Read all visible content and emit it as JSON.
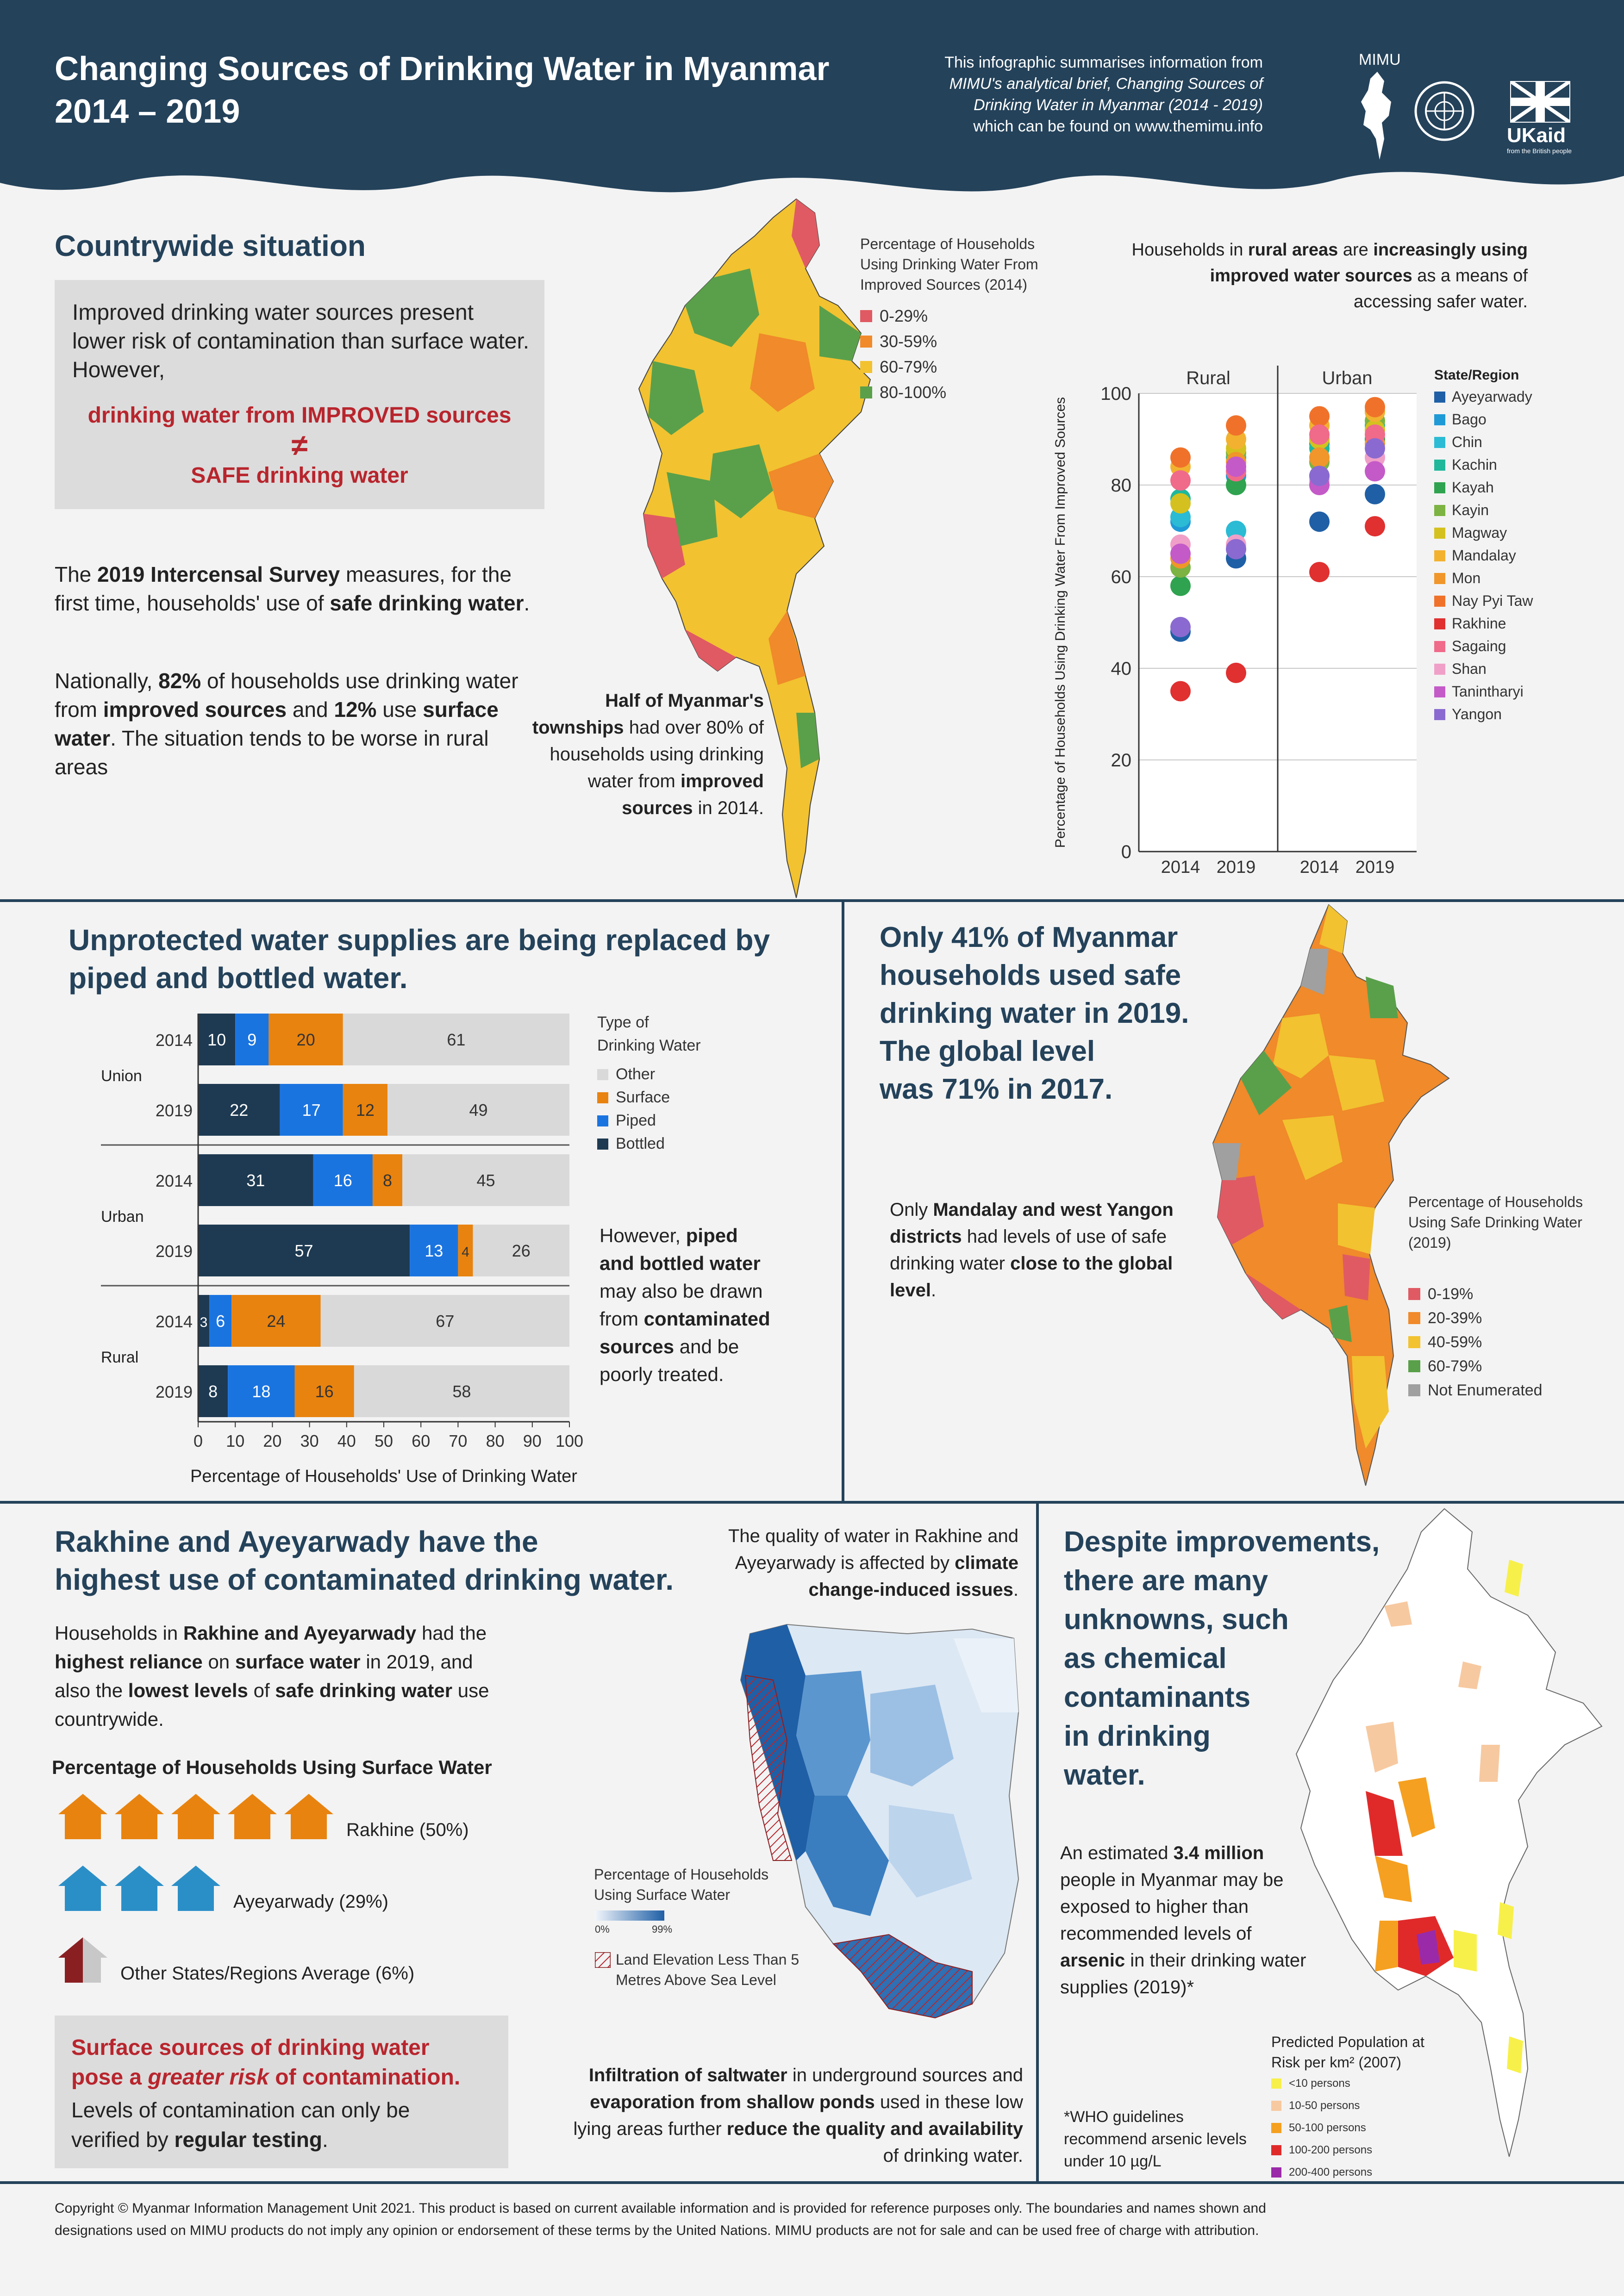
{
  "header": {
    "title_line1": "Changing Sources of Drinking Water in Myanmar",
    "title_line2": "2014 – 2019",
    "intro_line1": "This infographic summarises information from",
    "intro_line2": "MIMU's analytical brief, Changing Sources of",
    "intro_line3": "Drinking Water in Myanmar (2014 - 2019)",
    "intro_line4": "which can be found on www.themimu.info",
    "mimu_logo_text": "MIMU",
    "ukaid_text": "UKaid",
    "ukaid_sub": "from the British people"
  },
  "countrywide": {
    "heading": "Countrywide situation",
    "box_text": "Improved drinking water sources present lower risk of contamination than surface water. However,",
    "box_line1": "drinking water from IMPROVED sources",
    "neq": "≠",
    "box_line2": "SAFE drinking water",
    "para1_a": "The ",
    "para1_b": "2019 Intercensal Survey",
    "para1_c": " measures, for the first time, households' use of ",
    "para1_d": "safe drinking water",
    "para1_e": ".",
    "para2_a": "Nationally, ",
    "para2_b": "82%",
    "para2_c": " of households use drinking water from ",
    "para2_d": "improved sources",
    "para2_e": " and ",
    "para2_f": "12%",
    "para2_g": " use ",
    "para2_h": "surface water",
    "para2_i": ". The situation tends to be worse in rural areas",
    "map_legend_title": "Percentage of Households Using Drinking Water From Improved Sources (2014)",
    "map_legend": [
      {
        "label": "0-29%",
        "color": "#e05a63"
      },
      {
        "label": "30-59%",
        "color": "#f08a2a"
      },
      {
        "label": "60-79%",
        "color": "#f2c230"
      },
      {
        "label": "80-100%",
        "color": "#5aa04a"
      }
    ],
    "map_caption_b": "Half of Myanmar's townships",
    "map_caption_rest": "had over 80% of households using drinking water from",
    "map_caption_b2": "improved sources",
    "map_caption_end": "in 2014.",
    "rural_note_1": "Households in ",
    "rural_note_b1": "rural areas",
    "rural_note_2": " are ",
    "rural_note_b2": "increasingly using improved water sources",
    "rural_note_3": " as a means of accessing safer water."
  },
  "chart_data": [
    {
      "type": "scatter",
      "title": "",
      "panels": [
        "Rural",
        "Urban"
      ],
      "x": [
        "2014",
        "2019"
      ],
      "ylabel": "Percentage of Households Using Drinking Water From Improved Sources",
      "ylim": [
        0,
        100
      ],
      "yticks": [
        0,
        20,
        40,
        60,
        80,
        100
      ],
      "legend_title": "State/Region",
      "legend_position": "right",
      "grid": true,
      "series": [
        {
          "name": "Ayeyarwady",
          "color": "#1f5fa6",
          "rural": [
            48,
            64
          ],
          "urban": [
            72,
            78
          ]
        },
        {
          "name": "Bago",
          "color": "#1f9ad6",
          "rural": [
            72,
            82
          ],
          "urban": [
            89,
            90
          ]
        },
        {
          "name": "Chin",
          "color": "#2bbbd4",
          "rural": [
            73,
            70
          ],
          "urban": [
            90,
            96
          ]
        },
        {
          "name": "Kachin",
          "color": "#1fb89b",
          "rural": [
            77,
            86
          ],
          "urban": [
            88,
            93
          ]
        },
        {
          "name": "Kayah",
          "color": "#2fa34f",
          "rural": [
            58,
            80
          ],
          "urban": [
            82,
            90
          ]
        },
        {
          "name": "Kayin",
          "color": "#7cb342",
          "rural": [
            62,
            87
          ],
          "urban": [
            85,
            94
          ]
        },
        {
          "name": "Magway",
          "color": "#d4c11f",
          "rural": [
            76,
            88
          ],
          "urban": [
            90,
            92
          ]
        },
        {
          "name": "Mandalay",
          "color": "#f2b230",
          "rural": [
            84,
            90
          ],
          "urban": [
            93,
            96
          ]
        },
        {
          "name": "Mon",
          "color": "#f0962a",
          "rural": [
            64,
            85
          ],
          "urban": [
            86,
            89
          ]
        },
        {
          "name": "Nay Pyi Taw",
          "color": "#f0722a",
          "rural": [
            86,
            93
          ],
          "urban": [
            95,
            97
          ]
        },
        {
          "name": "Rakhine",
          "color": "#e03030",
          "rural": [
            35,
            39
          ],
          "urban": [
            61,
            71
          ]
        },
        {
          "name": "Sagaing",
          "color": "#f06a8a",
          "rural": [
            81,
            83
          ],
          "urban": [
            91,
            91
          ]
        },
        {
          "name": "Shan",
          "color": "#f0a0c8",
          "rural": [
            67,
            67
          ],
          "urban": [
            81,
            86
          ]
        },
        {
          "name": "Tanintharyi",
          "color": "#c45ac8",
          "rural": [
            65,
            84
          ],
          "urban": [
            80,
            83
          ]
        },
        {
          "name": "Yangon",
          "color": "#8a6ad0",
          "rural": [
            49,
            66
          ],
          "urban": [
            82,
            88
          ]
        }
      ]
    },
    {
      "type": "bar",
      "orientation": "horizontal",
      "stacked": true,
      "title": "",
      "xlabel": "Percentage of Households' Use of Drinking Water",
      "xlim": [
        0,
        100
      ],
      "xticks": [
        0,
        10,
        20,
        30,
        40,
        50,
        60,
        70,
        80,
        90,
        100
      ],
      "legend_title": "Type of Drinking Water",
      "legend": [
        "Other",
        "Surface",
        "Piped",
        "Bottled"
      ],
      "colors": {
        "Bottled": "#1e3a52",
        "Piped": "#1a74e0",
        "Surface": "#e8830f",
        "Other": "#d9d9d9"
      },
      "groups": [
        {
          "name": "Union",
          "rows": [
            {
              "year": "2014",
              "Bottled": 10,
              "Piped": 9,
              "Surface": 20,
              "Other": 61
            },
            {
              "year": "2019",
              "Bottled": 22,
              "Piped": 17,
              "Surface": 12,
              "Other": 49
            }
          ]
        },
        {
          "name": "Urban",
          "rows": [
            {
              "year": "2014",
              "Bottled": 31,
              "Piped": 16,
              "Surface": 8,
              "Other": 45
            },
            {
              "year": "2019",
              "Bottled": 57,
              "Piped": 13,
              "Surface": 4,
              "Other": 26
            }
          ]
        },
        {
          "name": "Rural",
          "rows": [
            {
              "year": "2014",
              "Bottled": 3,
              "Piped": 6,
              "Surface": 24,
              "Other": 67
            },
            {
              "year": "2019",
              "Bottled": 8,
              "Piped": 18,
              "Surface": 16,
              "Other": 58
            }
          ]
        }
      ]
    }
  ],
  "unprotected": {
    "heading_line1": "Unprotected water supplies are being replaced by",
    "heading_line2": "piped and bottled water.",
    "note_a": "However, ",
    "note_b": "piped and bottled water",
    "note_c": " may also be drawn from ",
    "note_d": "contaminated sources",
    "note_e": " and be poorly treated."
  },
  "safe": {
    "heading_lines": [
      "Only 41% of Myanmar",
      "households used safe",
      "drinking water in 2019.",
      "The global level",
      "was 71% in 2017."
    ],
    "text_a": "Only ",
    "text_b": "Mandalay and west Yangon districts",
    "text_c": " had levels of use of safe drinking water ",
    "text_d": "close to the global level",
    "text_e": ".",
    "legend_title": "Percentage of Households Using Safe Drinking Water (2019)",
    "legend": [
      {
        "label": "0-19%",
        "color": "#e05a63"
      },
      {
        "label": "20-39%",
        "color": "#f08a2a"
      },
      {
        "label": "40-59%",
        "color": "#f2c230"
      },
      {
        "label": "60-79%",
        "color": "#5aa04a"
      },
      {
        "label": "Not Enumerated",
        "color": "#a0a0a0"
      }
    ]
  },
  "rakhine": {
    "heading_line1": "Rakhine and Ayeyarwady have the",
    "heading_line2": "highest use of contaminated drinking water.",
    "para_a": "Households in ",
    "para_b": "Rakhine and Ayeyarwady",
    "para_c": " had the ",
    "para_d": "highest reliance",
    "para_e": " on ",
    "para_f": "surface water",
    "para_g": " in 2019, and also the ",
    "para_h": "lowest levels",
    "para_i": " of ",
    "para_j": "safe drinking water",
    "para_k": " use countrywide.",
    "icon_heading": "Percentage of Households Using Surface Water",
    "rows": [
      {
        "label": "Rakhine (50%)",
        "houses": 5,
        "color": "#e8830f"
      },
      {
        "label": "Ayeyarwady (29%)",
        "houses": 3,
        "color": "#2b8fc7"
      },
      {
        "label": "Other States/Regions Average (6%)",
        "houses": 0.6,
        "color": "#8a1f22"
      }
    ],
    "box_line1": "Surface sources of drinking water",
    "box_line2a": "pose a ",
    "box_line2b": "greater risk",
    "box_line2c": " of contamination.",
    "box_line3": "Levels of contamination can only be",
    "box_line4a": "verified by ",
    "box_line4b": "regular testing",
    "box_line4c": ".",
    "climate_1": "The quality of water in Rakhine and Ayeyarwady is affected by ",
    "climate_b": "climate change-induced issues",
    "climate_2": ".",
    "map_legend_title": "Percentage of Households Using Surface Water",
    "map_legend_min": "0%",
    "map_legend_max": "99%",
    "hatch_label": "Land Elevation Less Than 5 Metres Above Sea Level",
    "salt_b1": "Infiltration of saltwater",
    "salt_1": " in underground sources and ",
    "salt_b2": "evaporation from shallow ponds",
    "salt_2": " used in these low lying areas further ",
    "salt_b3": "reduce the quality and availability",
    "salt_3": " of drinking water."
  },
  "unknowns": {
    "heading_lines": [
      "Despite improvements,",
      "there are many",
      "unknowns, such",
      "as chemical",
      "contaminants",
      "in drinking",
      "water."
    ],
    "text_a": "An estimated ",
    "text_b": "3.4 million",
    "text_c": " people in Myanmar may be exposed to higher than recommended levels of ",
    "text_d": "arsenic",
    "text_e": " in their drinking water supplies (2019)*",
    "who_note": "*WHO guidelines recommend arsenic levels under 10 µg/L",
    "legend_title": "Predicted Population at Risk per km² (2007)",
    "legend": [
      {
        "label": "<10 persons",
        "color": "#f7f04a"
      },
      {
        "label": "10-50 persons",
        "color": "#f7c9a0"
      },
      {
        "label": "50-100 persons",
        "color": "#f5a020"
      },
      {
        "label": "100-200 persons",
        "color": "#e02a2a"
      },
      {
        "label": "200-400 persons",
        "color": "#9a2aa8"
      }
    ]
  },
  "footer": {
    "line1": "Copyright © Myanmar Information Management Unit 2021. This product is based on current available information and is provided for reference purposes only. The boundaries and names shown and",
    "line2": "designations used on MIMU products do not imply any opinion or endorsement of these terms by the United Nations. MIMU products are not for sale and can be used free of charge with attribution."
  },
  "colors": {
    "navy": "#24425a",
    "accent_red": "#b8252d",
    "box_grey": "#dcdcdc"
  }
}
